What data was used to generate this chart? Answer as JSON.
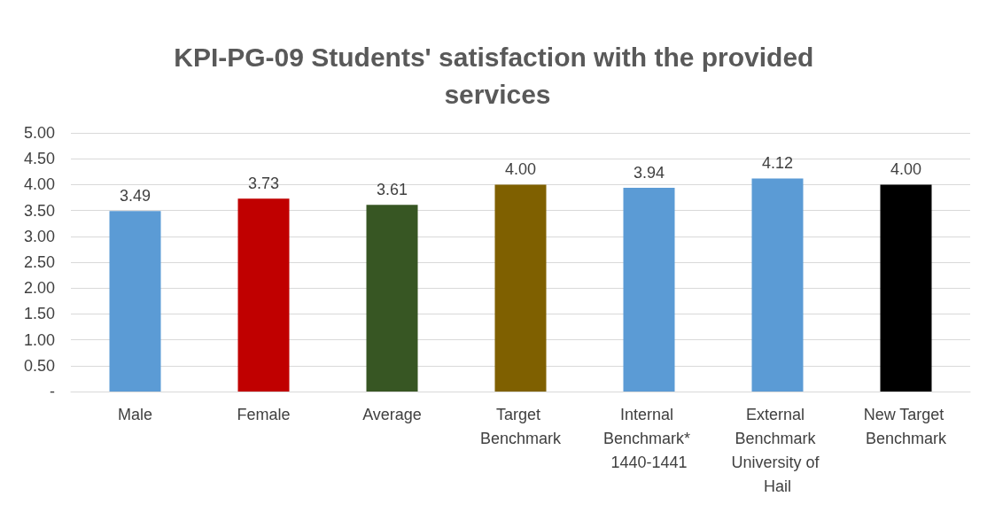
{
  "chart_data": {
    "type": "bar",
    "title": "KPI-PG-09 Students' satisfaction with the provided services",
    "categories": [
      "Male",
      "Female",
      "Average",
      "Target Benchmark",
      "Internal Benchmark* 1440-1441",
      "External Benchmark University of Hail",
      "New Target Benchmark"
    ],
    "values": [
      3.49,
      3.73,
      3.61,
      4.0,
      3.94,
      4.12,
      4.0
    ],
    "colors": [
      "#5b9bd5",
      "#c00000",
      "#375623",
      "#7f6000",
      "#5b9bd5",
      "#5b9bd5",
      "#000000"
    ],
    "value_labels": [
      "3.49",
      "3.73",
      "3.61",
      "4.00",
      "3.94",
      "4.12",
      "4.00"
    ],
    "ylim": [
      0,
      5
    ],
    "yticks": [
      {
        "value": 0,
        "label": "-"
      },
      {
        "value": 0.5,
        "label": "0.50"
      },
      {
        "value": 1,
        "label": "1.00"
      },
      {
        "value": 1.5,
        "label": "1.50"
      },
      {
        "value": 2,
        "label": "2.00"
      },
      {
        "value": 2.5,
        "label": "2.50"
      },
      {
        "value": 3,
        "label": "3.00"
      },
      {
        "value": 3.5,
        "label": "3.50"
      },
      {
        "value": 4,
        "label": "4.00"
      },
      {
        "value": 4.5,
        "label": "4.50"
      },
      {
        "value": 5,
        "label": "5.00"
      }
    ],
    "grid": "y"
  }
}
